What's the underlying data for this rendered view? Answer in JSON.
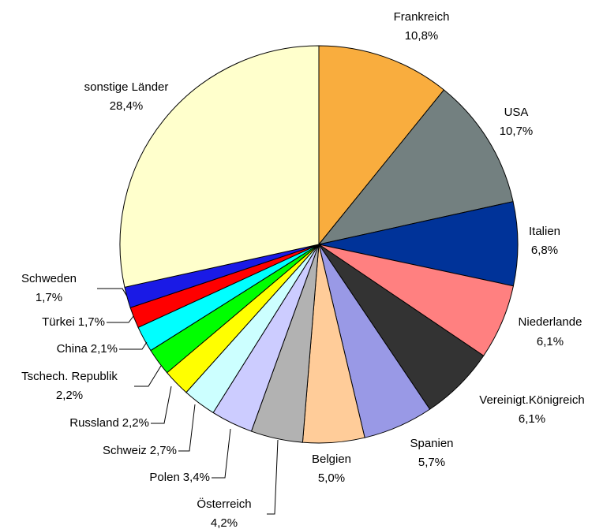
{
  "chart_data": {
    "type": "pie",
    "categories": [
      "Frankreich",
      "USA",
      "Italien",
      "Niederlande",
      "Vereinigt.Königreich",
      "Spanien",
      "Belgien",
      "Österreich",
      "Polen",
      "Schweiz",
      "Russland",
      "Tschech. Republik",
      "China",
      "Türkei",
      "Schweden",
      "sonstige Länder"
    ],
    "values": [
      10.8,
      10.7,
      6.8,
      6.1,
      6.1,
      5.7,
      5.0,
      4.2,
      3.4,
      2.7,
      2.2,
      2.2,
      2.1,
      1.7,
      1.7,
      28.4
    ],
    "value_labels": [
      "10,8%",
      "10,7%",
      "6,8%",
      "6,1%",
      "6,1%",
      "5,7%",
      "5,0%",
      "4,2%",
      "3,4%",
      "2,7%",
      "2,2%",
      "2,2%",
      "2,1%",
      "1,7%",
      "1,7%",
      "28,4%"
    ],
    "colors": [
      "#f9ad3e",
      "#738080",
      "#003399",
      "#ff8080",
      "#333333",
      "#9999e6",
      "#ffcc99",
      "#b2b2b2",
      "#ccccff",
      "#ccffff",
      "#ffff00",
      "#00ff00",
      "#00ffff",
      "#ff0000",
      "#1a1ae6",
      "#ffffcc"
    ]
  }
}
